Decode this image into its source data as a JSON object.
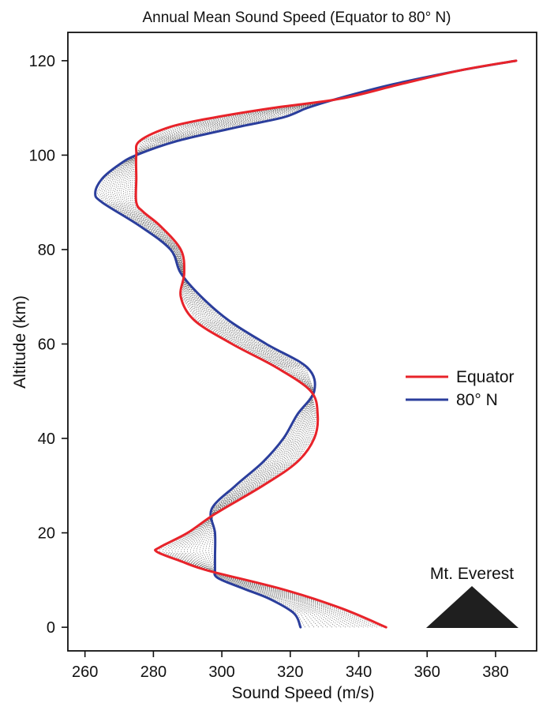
{
  "chart_data": {
    "type": "line",
    "title": "Annual Mean Sound Speed (Equator to 80° N)",
    "xlabel": "Sound Speed (m/s)",
    "ylabel": "Altitude (km)",
    "xlim": [
      255,
      392
    ],
    "ylim": [
      -5,
      126
    ],
    "xticks": [
      260,
      280,
      300,
      320,
      340,
      360,
      380
    ],
    "yticks": [
      0,
      20,
      40,
      60,
      80,
      100,
      120
    ],
    "grid": false,
    "legend_position": "right",
    "intermediate_latitude_curves": 18,
    "series": [
      {
        "name": "Equator",
        "color": "#e8232a",
        "altitude": [
          0,
          4,
          8,
          12,
          14,
          16,
          17,
          20,
          24,
          30,
          35,
          40,
          45,
          50,
          55,
          60,
          65,
          70,
          75,
          80,
          85,
          88,
          90,
          95,
          100,
          103,
          106,
          108,
          110,
          112,
          115,
          118,
          120
        ],
        "speed": [
          348,
          335,
          318,
          296,
          288,
          281,
          282,
          290,
          298,
          312,
          322,
          327,
          328,
          326,
          316,
          303,
          292,
          288,
          289,
          288,
          282,
          277,
          275,
          275,
          275,
          276,
          285,
          298,
          315,
          335,
          352,
          370,
          386
        ]
      },
      {
        "name": "80° N",
        "color": "#2b3e9c",
        "altitude": [
          0,
          3,
          6,
          8,
          10,
          11,
          12,
          15,
          20,
          25,
          30,
          35,
          40,
          45,
          50,
          55,
          60,
          65,
          70,
          75,
          80,
          85,
          90,
          92,
          95,
          98,
          100,
          103,
          106,
          108,
          110,
          112,
          115,
          118,
          120
        ],
        "speed": [
          323,
          321,
          314,
          307,
          300,
          298,
          298,
          298,
          298,
          297,
          304,
          312,
          318,
          322,
          327,
          325,
          313,
          302,
          294,
          288,
          285,
          276,
          265,
          263,
          265,
          270,
          275,
          287,
          305,
          318,
          325,
          334,
          350,
          370,
          386
        ]
      }
    ],
    "annotation": {
      "label": "Mt. Everest",
      "icon": "triangle-mountain-icon",
      "altitude_km": 8.8
    }
  }
}
